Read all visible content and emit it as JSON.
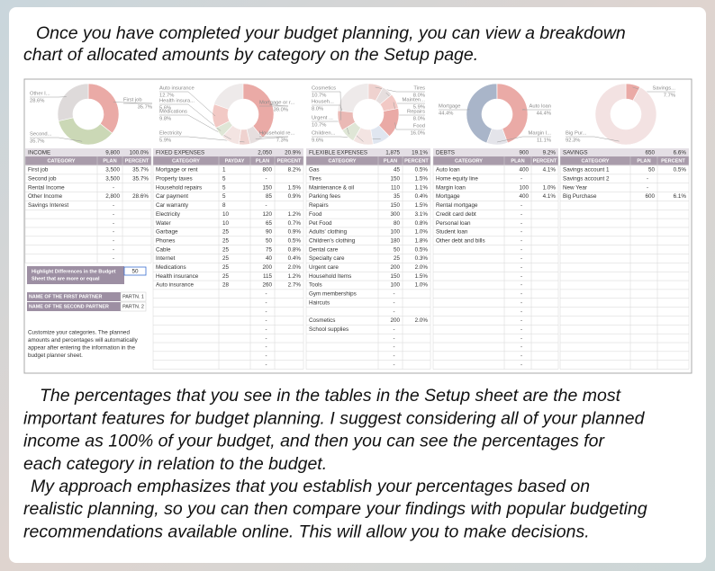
{
  "intro": [
    "Once you have completed your budget planning, you can view a breakdown",
    "chart of allocated amounts by category on the Setup page."
  ],
  "sections": [
    {
      "title": "INCOME",
      "total": "9,800",
      "percent": "100.0%",
      "columns": [
        "CATEGORY",
        "PLAN",
        "PERCENT"
      ],
      "donut": [
        {
          "name": "First job",
          "value": 35.7,
          "value_label": "35.7%",
          "color": "#eaaaa6"
        },
        {
          "name": "Second...",
          "value": 35.7,
          "value_label": "35.7%",
          "color": "#cbd8b6"
        },
        {
          "name": "Other I...",
          "value": 28.6,
          "value_label": "28.6%",
          "color": "#dedada"
        }
      ],
      "rows": [
        {
          "category": "First job",
          "plan": "3,500",
          "percent": "35.7%"
        },
        {
          "category": "Second job",
          "plan": "3,500",
          "percent": "35.7%"
        },
        {
          "category": "Rental Income",
          "plan": "-"
        },
        {
          "category": "Other Income",
          "plan": "2,800",
          "percent": "28.6%"
        },
        {
          "category": "Savings Interest",
          "plan": "-"
        },
        {
          "plan": "-"
        },
        {
          "plan": "-"
        },
        {
          "plan": "-"
        },
        {
          "plan": "-"
        },
        {
          "plan": "-"
        },
        {
          "plan": "-"
        }
      ]
    },
    {
      "title": "FIXED EXPENSES",
      "total": "2,050",
      "percent": "20.9%",
      "columns": [
        "CATEGORY",
        "PAYDAY",
        "PLAN",
        "PERCENT"
      ],
      "donut": [
        {
          "name": "Mortgage or r...",
          "value": 39.0,
          "value_label": "39.0%",
          "color": "#eaaaa6"
        },
        {
          "name": "Household re...",
          "value": 7.3,
          "value_label": "7.3%",
          "color": "#e6dede"
        },
        {
          "name": "Electricity",
          "value": 5.9,
          "value_label": "5.9%",
          "color": "#efd2cf"
        },
        {
          "name": "Medications",
          "value": 9.8,
          "value_label": "9.8%",
          "color": "#f3e4e2"
        },
        {
          "name": "Health insura...",
          "value": 5.6,
          "value_label": "5.6%",
          "color": "#dfe6d6"
        },
        {
          "name": "Auto insurance",
          "value": 12.7,
          "value_label": "12.7%",
          "color": "#f2c9c5"
        }
      ],
      "rows": [
        {
          "category": "Mortgage or rent",
          "payday": "1",
          "plan": "800",
          "percent": "8.2%"
        },
        {
          "category": "Property taxes",
          "payday": "5",
          "plan": "-"
        },
        {
          "category": "Household repairs",
          "payday": "5",
          "plan": "150",
          "percent": "1.5%"
        },
        {
          "category": "Car payment",
          "payday": "5",
          "plan": "85",
          "percent": "0.9%"
        },
        {
          "category": "Car warranty",
          "payday": "8",
          "plan": "-"
        },
        {
          "category": "Electricity",
          "payday": "10",
          "plan": "120",
          "percent": "1.2%"
        },
        {
          "category": "Water",
          "payday": "10",
          "plan": "65",
          "percent": "0.7%"
        },
        {
          "category": "Garbage",
          "payday": "25",
          "plan": "90",
          "percent": "0.9%"
        },
        {
          "category": "Phones",
          "payday": "25",
          "plan": "50",
          "percent": "0.5%"
        },
        {
          "category": "Cable",
          "payday": "25",
          "plan": "75",
          "percent": "0.8%"
        },
        {
          "category": "Internet",
          "payday": "25",
          "plan": "40",
          "percent": "0.4%"
        },
        {
          "category": "Medications",
          "payday": "25",
          "plan": "200",
          "percent": "2.0%"
        },
        {
          "category": "Health insurance",
          "payday": "25",
          "plan": "115",
          "percent": "1.2%"
        },
        {
          "category": "Auto insurance",
          "payday": "28",
          "plan": "260",
          "percent": "2.7%"
        },
        {
          "plan": "-"
        },
        {
          "plan": "-"
        },
        {
          "plan": "-"
        },
        {
          "plan": "-"
        },
        {
          "plan": "-"
        },
        {
          "plan": "-"
        },
        {
          "plan": "-"
        },
        {
          "plan": "-"
        },
        {
          "plan": "-"
        }
      ]
    },
    {
      "title": "FLEXIBLE EXPENSES",
      "total": "1,875",
      "percent": "19.1%",
      "columns": [
        "CATEGORY",
        "PLAN",
        "PERCENT"
      ],
      "donut": [
        {
          "name": "Tires",
          "value": 8.0,
          "value_label": "8.0%",
          "color": "#efd2cf"
        },
        {
          "name": "Mainten...",
          "value": 5.9,
          "value_label": "5.9%",
          "color": "#e6dede"
        },
        {
          "name": "Repairs",
          "value": 8.0,
          "value_label": "8.0%",
          "color": "#f2c9c5"
        },
        {
          "name": "Food",
          "value": 16.0,
          "value_label": "16.0%",
          "color": "#eaaaa6"
        },
        {
          "name": "Children...",
          "value": 9.6,
          "value_label": "9.6%",
          "color": "#e0e6f0"
        },
        {
          "name": "Urgent ...",
          "value": 10.7,
          "value_label": "10.7%",
          "color": "#f3e4e2"
        },
        {
          "name": "Househ...",
          "value": 8.0,
          "value_label": "8.0%",
          "color": "#dfe6d6"
        },
        {
          "name": "Cosmetics",
          "value": 10.7,
          "value_label": "10.7%",
          "color": "#eab9b5"
        }
      ],
      "rows": [
        {
          "category": "Gas",
          "plan": "45",
          "percent": "0.5%"
        },
        {
          "category": "Tires",
          "plan": "150",
          "percent": "1.5%"
        },
        {
          "category": "Maintenance & oil",
          "plan": "110",
          "percent": "1.1%"
        },
        {
          "category": "Parking fees",
          "plan": "35",
          "percent": "0.4%"
        },
        {
          "category": "Repairs",
          "plan": "150",
          "percent": "1.5%"
        },
        {
          "category": "Food",
          "plan": "300",
          "percent": "3.1%"
        },
        {
          "category": "Pet Food",
          "plan": "80",
          "percent": "0.8%"
        },
        {
          "category": "Adults' clothing",
          "plan": "100",
          "percent": "1.0%"
        },
        {
          "category": "Children's clothing",
          "plan": "180",
          "percent": "1.8%"
        },
        {
          "category": "Dental care",
          "plan": "50",
          "percent": "0.5%"
        },
        {
          "category": "Specialty care",
          "plan": "25",
          "percent": "0.3%"
        },
        {
          "category": "Urgent care",
          "plan": "200",
          "percent": "2.0%"
        },
        {
          "category": "Household Items",
          "plan": "150",
          "percent": "1.5%"
        },
        {
          "category": "Tools",
          "plan": "100",
          "percent": "1.0%"
        },
        {
          "category": "Gym memberships",
          "plan": "-"
        },
        {
          "category": "Haircuts",
          "plan": "-"
        },
        {
          "plan": "-"
        },
        {
          "category": "Cosmetics",
          "plan": "200",
          "percent": "2.0%"
        },
        {
          "category": "School supplies",
          "plan": "-"
        },
        {
          "plan": "-"
        },
        {
          "plan": "-"
        },
        {
          "plan": "-"
        },
        {
          "plan": "-"
        }
      ]
    },
    {
      "title": "DEBTS",
      "total": "900",
      "percent": "9.2%",
      "columns": [
        "CATEGORY",
        "PLAN",
        "PERCENT"
      ],
      "donut": [
        {
          "name": "Auto loan",
          "value": 44.4,
          "value_label": "44.4%",
          "color": "#eaaaa6"
        },
        {
          "name": "Margin l...",
          "value": 11.1,
          "value_label": "11.1%",
          "color": "#e4e4ea"
        },
        {
          "name": "Mortgage",
          "value": 44.4,
          "value_label": "44.4%",
          "color": "#a9b5c9"
        }
      ],
      "rows": [
        {
          "category": "Auto loan",
          "plan": "400",
          "percent": "4.1%"
        },
        {
          "category": "Home equity line",
          "plan": "-"
        },
        {
          "category": "Margin loan",
          "plan": "100",
          "percent": "1.0%"
        },
        {
          "category": "Mortgage",
          "plan": "400",
          "percent": "4.1%"
        },
        {
          "category": "Rental mortgage",
          "plan": "-"
        },
        {
          "category": "Credit card debt",
          "plan": "-"
        },
        {
          "category": "Personal loan",
          "plan": "-"
        },
        {
          "category": "Student loan",
          "plan": "-"
        },
        {
          "category": "Other debt and bills",
          "plan": "-"
        },
        {
          "plan": "-"
        },
        {
          "plan": "-"
        },
        {
          "plan": "-"
        },
        {
          "plan": "-"
        },
        {
          "plan": "-"
        },
        {
          "plan": "-"
        },
        {
          "plan": "-"
        },
        {
          "plan": "-"
        },
        {
          "plan": "-"
        },
        {
          "plan": "-"
        },
        {
          "plan": "-"
        },
        {
          "plan": "-"
        },
        {
          "plan": "-"
        },
        {
          "plan": "-"
        }
      ]
    },
    {
      "title": "SAVINGS",
      "total": "650",
      "percent": "6.6%",
      "columns": [
        "CATEGORY",
        "PLAN",
        "PERCENT"
      ],
      "donut": [
        {
          "name": "Savings...",
          "value": 7.7,
          "value_label": "7.7%",
          "color": "#eaaaa6"
        },
        {
          "name": "Big Pur...",
          "value": 92.3,
          "value_label": "92.3%",
          "color": "#f3e2e2"
        }
      ],
      "rows": [
        {
          "category": "Savings account 1",
          "plan": "50",
          "percent": "0.5%"
        },
        {
          "category": "Savings account 2",
          "plan": "-"
        },
        {
          "category": "New Year",
          "plan": "-"
        },
        {
          "category": "Big Purchase",
          "plan": "600",
          "percent": "6.1%"
        }
      ]
    }
  ],
  "highlight": {
    "label": [
      "Highlight Differences in the Budget",
      "Sheet that are more or equal"
    ],
    "value": "50"
  },
  "partners": [
    {
      "label": "NAME OF THE FIRST PARTNER",
      "tag": "PARTN. 1"
    },
    {
      "label": "NAME OF THE SECOND PARTNER",
      "tag": "PARTN. 2"
    }
  ],
  "note": [
    "Customize your categories. The planned",
    "amounts and percentages will automatically",
    "appear after entering the information in the",
    "budget planner sheet."
  ],
  "outro": [
    "The percentages that you see in the tables in the Setup sheet are the most",
    "important features for budget planning. I suggest considering all of your planned",
    "income as 100% of your budget, and then you can see the percentages for",
    "each category in relation to the budget.",
    "My approach emphasizes that you establish your percentages based on",
    "realistic planning, so you can then compare your findings with popular budgeting",
    "recommendations available online. This will allow you to make decisions."
  ]
}
